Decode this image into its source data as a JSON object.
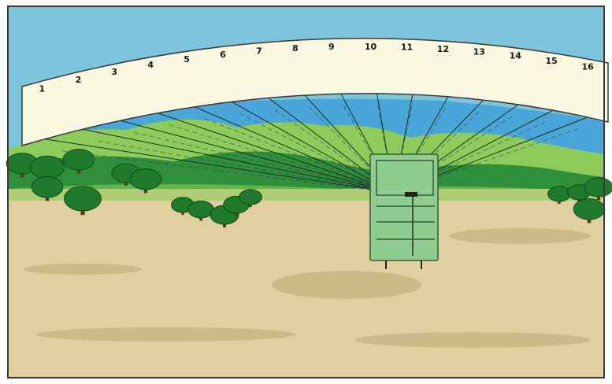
{
  "diagram": {
    "sector_labels": [
      "1",
      "2",
      "3",
      "4",
      "5",
      "6",
      "7",
      "8",
      "9",
      "10",
      "11",
      "12",
      "13",
      "14",
      "15",
      "16"
    ],
    "colors": {
      "sky": "#7cc5dc",
      "lake": "#4aa6d8",
      "ground": "#e0cf9f",
      "ground_shadow": "#bfa874",
      "hill_dark": "#2f8f3a",
      "hill_light": "#8dcc5a",
      "tree_foliage": "#1f7a2e",
      "trunk": "#5a3a1a",
      "panel": "#fbf8e2",
      "building": "#8fcc8f",
      "border": "#3a3a3a"
    }
  }
}
